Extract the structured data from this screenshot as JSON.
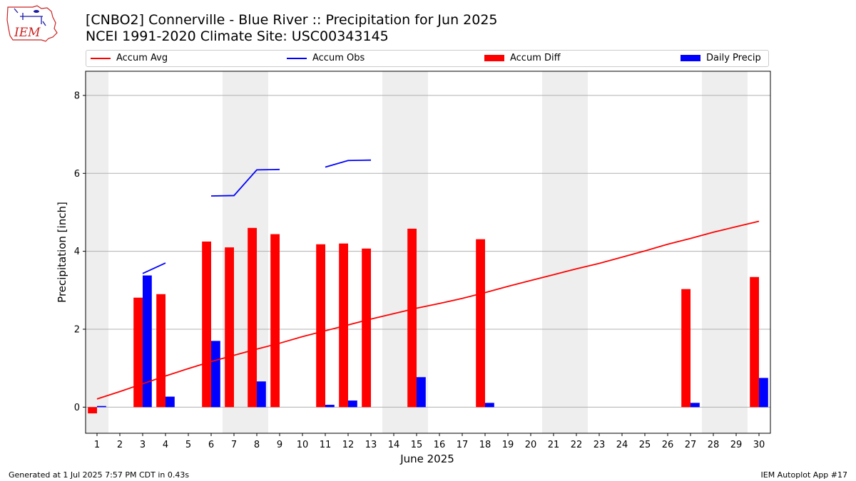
{
  "header": {
    "title_line1": "[CNBO2] Connerville - Blue River :: Precipitation for Jun 2025",
    "title_line2": "NCEI 1991-2020 Climate Site: USC00343145",
    "logo_text": "IEM"
  },
  "legend": {
    "items": [
      {
        "label": "Accum Avg",
        "kind": "line",
        "color": "#ff0000"
      },
      {
        "label": "Accum Obs",
        "kind": "line",
        "color": "#0000ff"
      },
      {
        "label": "Accum Diff",
        "kind": "bar",
        "color": "#ff0000"
      },
      {
        "label": "Daily Precip",
        "kind": "bar",
        "color": "#0000ff"
      }
    ]
  },
  "footer": {
    "generated": "Generated at 1 Jul 2025 7:57 PM CDT in 0.43s",
    "app": "IEM Autoplot App #17"
  },
  "chart_data": {
    "type": "bar",
    "xlabel": "June 2025",
    "ylabel": "Precipitation [inch]",
    "xlim": [
      0.5,
      30.5
    ],
    "ylim": [
      -0.67,
      8.62
    ],
    "yticks": [
      0,
      2,
      4,
      6,
      8
    ],
    "xticks": [
      1,
      2,
      3,
      4,
      5,
      6,
      7,
      8,
      9,
      10,
      11,
      12,
      13,
      14,
      15,
      16,
      17,
      18,
      19,
      20,
      21,
      22,
      23,
      24,
      25,
      26,
      27,
      28,
      29,
      30
    ],
    "grid": "y",
    "weekend_shading_days": [
      [
        1,
        1
      ],
      [
        7,
        8
      ],
      [
        14,
        15
      ],
      [
        21,
        22
      ],
      [
        28,
        29
      ]
    ],
    "colors": {
      "avg": "#ff0000",
      "obs": "#0000ff",
      "diff": "#ff0000",
      "daily": "#0000ff",
      "shade": "#eeeeee",
      "grid": "#b0b0b0"
    },
    "accum_avg": {
      "days": [
        1,
        2,
        3,
        4,
        5,
        6,
        7,
        8,
        9,
        10,
        11,
        12,
        13,
        14,
        15,
        16,
        17,
        18,
        19,
        20,
        21,
        22,
        23,
        24,
        25,
        26,
        27,
        28,
        29,
        30
      ],
      "values": [
        0.21,
        0.4,
        0.6,
        0.8,
        0.99,
        1.17,
        1.33,
        1.49,
        1.64,
        1.81,
        1.96,
        2.11,
        2.26,
        2.4,
        2.54,
        2.66,
        2.79,
        2.94,
        3.1,
        3.25,
        3.4,
        3.55,
        3.69,
        3.85,
        4.01,
        4.18,
        4.33,
        4.49,
        4.63,
        4.77
      ]
    },
    "accum_obs_segments": [
      {
        "days": [
          3,
          4
        ],
        "values": [
          3.43,
          3.7
        ]
      },
      {
        "days": [
          6,
          7,
          8,
          9
        ],
        "values": [
          5.42,
          5.43,
          6.09,
          6.1
        ]
      },
      {
        "days": [
          11,
          12,
          13
        ],
        "values": [
          6.16,
          6.33,
          6.34
        ]
      }
    ],
    "series": [
      {
        "name": "Accum Diff",
        "days": [
          1,
          3,
          4,
          6,
          7,
          8,
          9,
          11,
          12,
          13,
          15,
          18,
          27,
          30
        ],
        "values": [
          -0.16,
          2.81,
          2.9,
          4.25,
          4.1,
          4.6,
          4.44,
          4.18,
          4.2,
          4.07,
          4.58,
          4.31,
          3.03,
          3.34
        ]
      },
      {
        "name": "Daily Precip",
        "days": [
          1,
          3,
          4,
          6,
          8,
          11,
          12,
          15,
          18,
          27,
          30
        ],
        "values": [
          0.03,
          3.38,
          0.27,
          1.7,
          0.66,
          0.06,
          0.17,
          0.77,
          0.11,
          0.11,
          0.75
        ]
      }
    ]
  }
}
